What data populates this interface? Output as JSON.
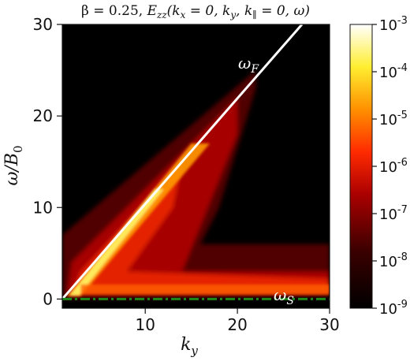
{
  "chart_data": {
    "type": "heatmap",
    "title": "β = 0.25, E_zz(k_x = 0, k_y, k_∥ = 0, ω)",
    "xlabel": "k_y",
    "ylabel": "ω/B₀",
    "xlim": [
      1,
      30
    ],
    "ylim": [
      -1,
      30
    ],
    "x_ticks": [
      10,
      20,
      30
    ],
    "y_ticks": [
      0,
      10,
      20,
      30
    ],
    "colormap": "hot",
    "color_scale": "log",
    "colorbar_range": [
      1e-09,
      0.001
    ],
    "colorbar_ticks": [
      "10^-9",
      "10^-8",
      "10^-7",
      "10^-6",
      "10^-5",
      "10^-4",
      "10^-3"
    ],
    "curves": [
      {
        "name": "ω_F",
        "color": "#ffffff",
        "style": "solid",
        "x": [
          1,
          27
        ],
        "y": [
          0,
          30
        ]
      },
      {
        "name": "ω_S",
        "color": "#1a8a1a",
        "style": "dashdot",
        "x": [
          1,
          30
        ],
        "y": [
          0,
          0
        ]
      }
    ],
    "annotations": [
      {
        "text_base": "ω",
        "text_sub": "F",
        "x": 20,
        "y": 25
      },
      {
        "text_base": "ω",
        "text_sub": "S",
        "x": 24.5,
        "y": 0.8
      }
    ]
  },
  "labels": {
    "title_beta": "β = 0.25, ",
    "title_E": "E",
    "title_sub_zz": "zz",
    "title_args_1": "(k",
    "title_sub_x": "x",
    "title_args_2": " = 0, k",
    "title_sub_y": "y",
    "title_args_3": ", k",
    "title_sub_par": "∥",
    "title_args_4": " = 0, ω)",
    "xlabel_base": "k",
    "xlabel_sub": "y",
    "ylabel_text": "ω/B",
    "ylabel_sub": "0",
    "cb_base": "10",
    "cb_exps": [
      "-3",
      "-4",
      "-5",
      "-6",
      "-7",
      "-8",
      "-9"
    ]
  },
  "colors": {
    "background": "#000000",
    "hot_low": "#000000",
    "hot_mid": "#e61a00",
    "hot_high": "#ffff66",
    "hot_top": "#ffffff",
    "fast_line": "#ffffff",
    "slow_line": "#1a8a1a"
  }
}
